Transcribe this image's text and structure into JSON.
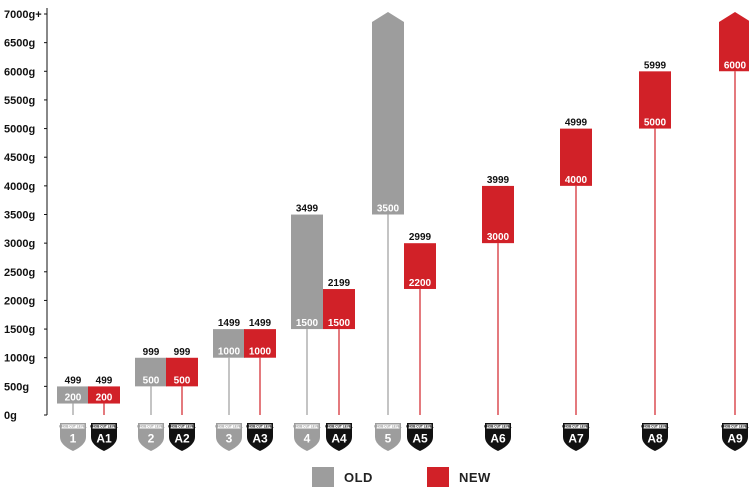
{
  "colors": {
    "old": "#9d9d9d",
    "new": "#d12128",
    "axis": "#111111",
    "shield_dark": "#111111",
    "shield_light": "#9d9d9d"
  },
  "legend": {
    "old_label": "OLD",
    "new_label": "NEW"
  },
  "shield_caption": "KNOB CUT LEVEL",
  "chart_data": {
    "type": "bar",
    "subtype": "floating-range",
    "y_unit": "g",
    "ylim": [
      0,
      7000
    ],
    "yticks": [
      "0g",
      "500g",
      "1000g",
      "1500g",
      "2000g",
      "2500g",
      "3000g",
      "3500g",
      "4000g",
      "4500g",
      "5000g",
      "5500g",
      "6000g",
      "6500g",
      "7000g+"
    ],
    "ytick_values": [
      0,
      500,
      1000,
      1500,
      2000,
      2500,
      3000,
      3500,
      4000,
      4500,
      5000,
      5500,
      6000,
      6500,
      7000
    ],
    "series": [
      {
        "name": "OLD",
        "categories": [
          "1",
          "2",
          "3",
          "4",
          "5"
        ],
        "low": [
          200,
          500,
          1000,
          1500,
          3500
        ],
        "high": [
          499,
          999,
          1499,
          3499,
          7000
        ],
        "high_labels": [
          "499",
          "999",
          "1499",
          "3499",
          ""
        ],
        "low_labels": [
          "200",
          "500",
          "1000",
          "1500",
          "3500"
        ]
      },
      {
        "name": "NEW",
        "categories": [
          "A1",
          "A2",
          "A3",
          "A4",
          "A5",
          "A6",
          "A7",
          "A8",
          "A9"
        ],
        "low": [
          200,
          500,
          1000,
          1500,
          2200,
          3000,
          4000,
          5000,
          6000
        ],
        "high": [
          499,
          999,
          1499,
          2199,
          2999,
          3999,
          4999,
          5999,
          7000
        ],
        "high_labels": [
          "499",
          "999",
          "1499",
          "2199",
          "2999",
          "3999",
          "4999",
          "5999",
          ""
        ],
        "low_labels": [
          "200",
          "500",
          "1000",
          "1500",
          "2200",
          "3000",
          "4000",
          "5000",
          "6000"
        ]
      }
    ],
    "open_ended": [
      "5",
      "A9"
    ]
  }
}
